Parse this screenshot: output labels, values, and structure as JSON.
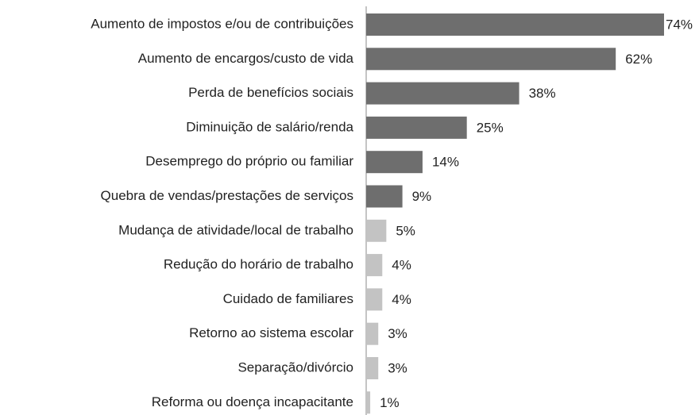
{
  "chart_data": {
    "type": "barh",
    "categories": [
      "Aumento de impostos e/ou de contribuições",
      "Aumento de encargos/custo de vida",
      "Perda de benefícios sociais",
      "Diminuição de salário/renda",
      "Desemprego do próprio ou familiar",
      "Quebra de vendas/prestações de serviços",
      "Mudança de atividade/local de trabalho",
      "Redução do horário de trabalho",
      "Cuidado de familiares",
      "Retorno ao sistema escolar",
      "Separação/divórcio",
      "Reforma ou doença incapacitante"
    ],
    "values": [
      74,
      62,
      38,
      25,
      14,
      9,
      5,
      4,
      4,
      3,
      3,
      1
    ],
    "value_labels": [
      "74%",
      "62%",
      "38%",
      "25%",
      "14%",
      "9%",
      "5%",
      "4%",
      "4%",
      "3%",
      "3%",
      "1%"
    ],
    "colors": [
      "#6e6e6e",
      "#6e6e6e",
      "#6e6e6e",
      "#6e6e6e",
      "#6e6e6e",
      "#6e6e6e",
      "#c3c3c3",
      "#c3c3c3",
      "#c3c3c3",
      "#c3c3c3",
      "#c3c3c3",
      "#c3c3c3"
    ]
  }
}
